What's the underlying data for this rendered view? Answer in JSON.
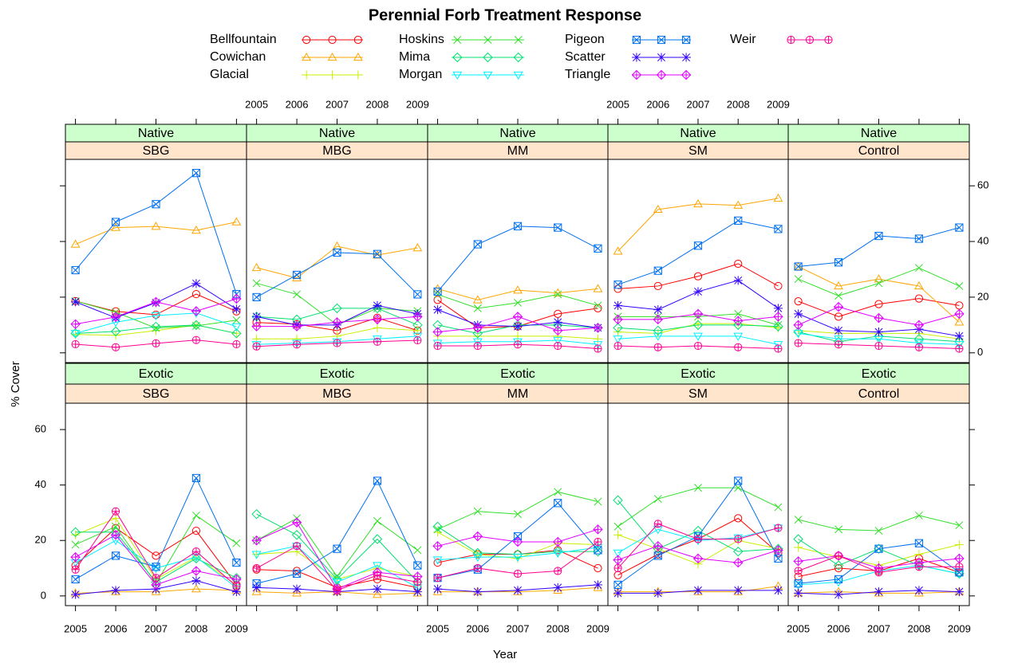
{
  "chart_data": {
    "type": "line",
    "title": "Perennial Forb Treatment Response",
    "xlabel": "Year",
    "ylabel": "% Cover",
    "x": [
      2005,
      2006,
      2007,
      2008,
      2009
    ],
    "xlim": [
      2004.75,
      2009.25
    ],
    "xticks": [
      2005,
      2006,
      2007,
      2008,
      2009
    ],
    "ylim": [
      -3.5,
      69.5
    ],
    "yticks": [
      0,
      20,
      40,
      60
    ],
    "series": [
      {
        "name": "Bellfountain",
        "color": "#ff0000",
        "marker": "circle"
      },
      {
        "name": "Cowichan",
        "color": "#ffa500",
        "marker": "triangle"
      },
      {
        "name": "Glacial",
        "color": "#c8f000",
        "marker": "plus"
      },
      {
        "name": "Hoskins",
        "color": "#33e02a",
        "marker": "x"
      },
      {
        "name": "Mima",
        "color": "#00e070",
        "marker": "diamond"
      },
      {
        "name": "Morgan",
        "color": "#00f0ff",
        "marker": "triangle-down"
      },
      {
        "name": "Pigeon",
        "color": "#0070f0",
        "marker": "boxed-x"
      },
      {
        "name": "Scatter",
        "color": "#3300ff",
        "marker": "asterisk"
      },
      {
        "name": "Triangle",
        "color": "#e000ff",
        "marker": "diamond-plus"
      },
      {
        "name": "Weir",
        "color": "#ff0090",
        "marker": "circle-plus"
      }
    ],
    "panels": [
      {
        "origin": "Native",
        "treatment": "SBG",
        "values": [
          [
            18.6,
            14.9,
            13.7,
            21.1,
            14.9
          ],
          [
            39,
            45,
            45.4,
            44,
            47
          ],
          [
            6.6,
            6.3,
            8,
            10,
            7
          ],
          [
            18.6,
            14.6,
            8.9,
            9.7,
            11.7
          ],
          [
            7,
            7.7,
            9.4,
            10,
            7
          ],
          [
            7,
            11,
            13.4,
            14.3,
            9.4
          ],
          [
            29.7,
            47,
            53.4,
            64.6,
            21.1
          ],
          [
            18.3,
            12.6,
            18,
            24.9,
            15.7
          ],
          [
            10.3,
            12.9,
            18.3,
            15,
            19.4
          ],
          [
            3.1,
            2,
            3.4,
            4.6,
            3.1
          ]
        ]
      },
      {
        "origin": "Native",
        "treatment": "MBG",
        "values": [
          [
            10.9,
            10.3,
            8,
            12.6,
            8
          ],
          [
            30.6,
            26.9,
            38.3,
            35.1,
            37.7
          ],
          [
            5,
            5,
            6,
            9,
            8
          ],
          [
            25,
            21,
            10,
            16,
            15
          ],
          [
            13,
            12,
            16,
            16,
            10
          ],
          [
            3,
            3.5,
            4,
            5,
            6
          ],
          [
            20,
            28,
            36,
            35.5,
            21
          ],
          [
            13,
            10,
            10,
            17,
            14
          ],
          [
            9.5,
            9.5,
            11,
            12,
            13
          ],
          [
            2.3,
            3,
            3.5,
            4,
            4.5
          ]
        ]
      },
      {
        "origin": "Native",
        "treatment": "MM",
        "values": [
          [
            19,
            9,
            9.5,
            14,
            16
          ],
          [
            23,
            19,
            22.5,
            21.5,
            23
          ],
          [
            6,
            6,
            6,
            6,
            5
          ],
          [
            21,
            16,
            18,
            21,
            17
          ],
          [
            10,
            7,
            10,
            10,
            9
          ],
          [
            3.5,
            4,
            4,
            4.5,
            3
          ],
          [
            22,
            39,
            45.5,
            45,
            37.5
          ],
          [
            15.5,
            10,
            9.5,
            11,
            9
          ],
          [
            7.5,
            9,
            13,
            8,
            9
          ],
          [
            2.5,
            2.5,
            3,
            2.5,
            1.5
          ]
        ]
      },
      {
        "origin": "Native",
        "treatment": "SM",
        "values": [
          [
            23,
            24,
            27.5,
            32,
            24
          ],
          [
            36.5,
            51.5,
            53.5,
            53,
            55.5
          ],
          [
            7.5,
            7,
            10.5,
            10.5,
            9
          ],
          [
            13,
            13,
            13,
            14,
            10
          ],
          [
            9,
            8,
            10,
            10,
            9.5
          ],
          [
            5,
            6,
            6,
            6,
            3
          ],
          [
            24.5,
            29.5,
            38.5,
            47.5,
            44.5
          ],
          [
            17,
            15.5,
            22,
            26,
            16
          ],
          [
            12,
            12,
            14,
            11.5,
            13
          ],
          [
            2.5,
            2,
            2.5,
            2,
            1.5
          ]
        ]
      },
      {
        "origin": "Native",
        "treatment": "Control",
        "values": [
          [
            18.5,
            13,
            17.5,
            19.5,
            17
          ],
          [
            31,
            24,
            26.5,
            24,
            11
          ],
          [
            8,
            7,
            7,
            7,
            5
          ],
          [
            26.5,
            20.5,
            25,
            30.5,
            24
          ],
          [
            7.5,
            4,
            6,
            5,
            4
          ],
          [
            7,
            5,
            5,
            3.5,
            3
          ],
          [
            31,
            32.5,
            42,
            41,
            45
          ],
          [
            14,
            8,
            7.5,
            8.5,
            6
          ],
          [
            10,
            16.5,
            12.5,
            10,
            14
          ],
          [
            3.5,
            3,
            2.5,
            2,
            1.5
          ]
        ]
      },
      {
        "origin": "Exotic",
        "treatment": "SBG",
        "values": [
          [
            11,
            24.5,
            14.5,
            23.5,
            4
          ],
          [
            1,
            1.5,
            1.5,
            2.5,
            2
          ],
          [
            22,
            28,
            6,
            14,
            4
          ],
          [
            18.5,
            25,
            4.5,
            29,
            19
          ],
          [
            23,
            23,
            5,
            13.5,
            6.5
          ],
          [
            12,
            20,
            10,
            14,
            3
          ],
          [
            6,
            14.5,
            10.5,
            42.5,
            12
          ],
          [
            0.5,
            2,
            2.5,
            5.5,
            1.5
          ],
          [
            14,
            22,
            4,
            9,
            6
          ],
          [
            9.5,
            30.5,
            6.5,
            16,
            3.5
          ]
        ]
      },
      {
        "origin": "Exotic",
        "treatment": "MBG",
        "values": [
          [
            9.5,
            9,
            3,
            6,
            3
          ],
          [
            1.5,
            1,
            1.5,
            0.5,
            1
          ],
          [
            15,
            16,
            6,
            10,
            7
          ],
          [
            20,
            28,
            7,
            27,
            16.5
          ],
          [
            29.5,
            22,
            6,
            20.5,
            5
          ],
          [
            15,
            18,
            5,
            11,
            3
          ],
          [
            4.5,
            8,
            17,
            41.5,
            11
          ],
          [
            3,
            2.5,
            1.5,
            2.5,
            1.5
          ],
          [
            20,
            26.5,
            2.5,
            8.5,
            7
          ],
          [
            10,
            18,
            2,
            7.5,
            5
          ]
        ]
      },
      {
        "origin": "Exotic",
        "treatment": "MM",
        "values": [
          [
            12,
            15,
            15,
            16.5,
            10
          ],
          [
            1.5,
            1.5,
            1.5,
            2,
            3
          ],
          [
            23,
            15,
            13.5,
            19,
            18.5
          ],
          [
            24,
            30.5,
            29.5,
            37.5,
            34
          ],
          [
            25,
            15.5,
            15,
            16,
            16
          ],
          [
            13,
            14,
            14,
            15.5,
            17.5
          ],
          [
            6.5,
            9.5,
            21.5,
            33.5,
            16.5
          ],
          [
            2.5,
            1.5,
            2,
            3,
            4
          ],
          [
            18,
            21.5,
            19.5,
            19.5,
            24
          ],
          [
            6.5,
            10,
            8,
            9,
            19.5
          ]
        ]
      },
      {
        "origin": "Exotic",
        "treatment": "SM",
        "values": [
          [
            7.5,
            15,
            20.5,
            28,
            15.5
          ],
          [
            1.5,
            1.5,
            1.5,
            1.5,
            3.5
          ],
          [
            22,
            17,
            11.5,
            20,
            17
          ],
          [
            25,
            35,
            39,
            39,
            32
          ],
          [
            34.5,
            17,
            23.5,
            16,
            17
          ],
          [
            15.5,
            24,
            20,
            21,
            24.5
          ],
          [
            4,
            14.5,
            21.5,
            41.5,
            13.5
          ],
          [
            1,
            1,
            2,
            2,
            2
          ],
          [
            13,
            18,
            13.5,
            12,
            16.5
          ],
          [
            10,
            26,
            20.5,
            20.5,
            24.5
          ]
        ]
      },
      {
        "origin": "Exotic",
        "treatment": "Control",
        "values": [
          [
            7,
            10,
            9,
            13.5,
            8.5
          ],
          [
            1,
            1.5,
            1,
            1,
            1.5
          ],
          [
            17.5,
            14,
            11,
            15,
            18.5
          ],
          [
            27.5,
            24,
            23.5,
            29,
            25.5
          ],
          [
            20.5,
            11,
            17,
            11,
            8
          ],
          [
            4,
            5,
            9,
            11,
            8
          ],
          [
            4.5,
            6,
            17,
            19,
            8.5
          ],
          [
            1,
            0.5,
            1.5,
            2,
            1.5
          ],
          [
            12.5,
            14.5,
            10,
            12,
            13.5
          ],
          [
            9,
            14.5,
            8.5,
            10.5,
            10.5
          ]
        ]
      }
    ]
  }
}
